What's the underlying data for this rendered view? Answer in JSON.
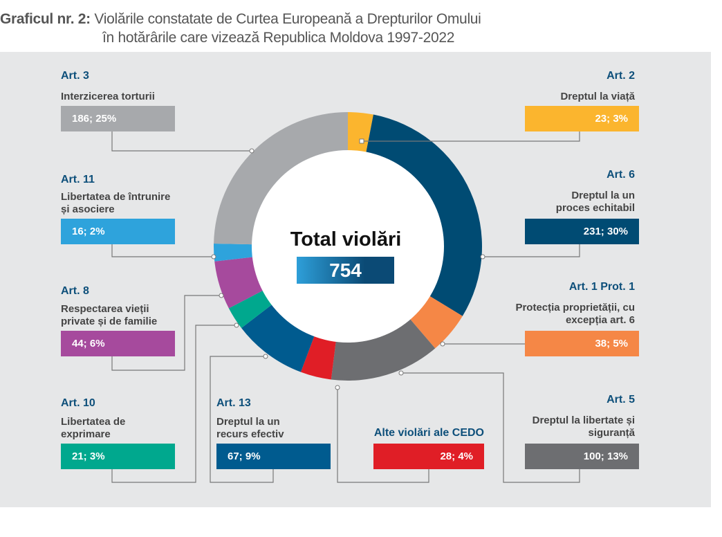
{
  "title": {
    "prefix": "Graficul nr. 2:",
    "line1": "Violările constatate de Curtea Europeană a Drepturilor Omului",
    "line2": "în hotărârile care vizează Republica Moldova 1997-2022"
  },
  "chart_data": {
    "type": "pie",
    "center_label": "Total violări",
    "total": "754",
    "slices": [
      {
        "article": "Art. 2",
        "label": "Dreptul la viață",
        "value": 23,
        "percent": 3,
        "text": "23; 3%",
        "color": "#fbb52e"
      },
      {
        "article": "Art. 6",
        "label": "Dreptul la un proces echitabil",
        "value": 231,
        "percent": 30,
        "text": "231; 30%",
        "color": "#004b73"
      },
      {
        "article": "Art. 1 Prot. 1",
        "label": "Protecția proprietății, cu excepția art. 6",
        "value": 38,
        "percent": 5,
        "text": "38; 5%",
        "color": "#f58746"
      },
      {
        "article": "Art. 5",
        "label": "Dreptul la libertate și siguranță",
        "value": 100,
        "percent": 13,
        "text": "100; 13%",
        "color": "#6d6e71"
      },
      {
        "article": "",
        "label": "Alte violări ale CEDO",
        "value": 28,
        "percent": 4,
        "text": "28; 4%",
        "color": "#e01e26"
      },
      {
        "article": "Art. 13",
        "label": "Dreptul la un recurs efectiv",
        "value": 67,
        "percent": 9,
        "text": "67; 9%",
        "color": "#005b8f"
      },
      {
        "article": "Art. 10",
        "label": "Libertatea de exprimare",
        "value": 21,
        "percent": 3,
        "text": "21; 3%",
        "color": "#00a88e"
      },
      {
        "article": "Art. 8",
        "label": "Respectarea vieții private și de familie",
        "value": 44,
        "percent": 6,
        "text": "44; 6%",
        "color": "#a64a9d"
      },
      {
        "article": "Art. 11",
        "label": "Libertatea de întrunire și asociere",
        "value": 16,
        "percent": 2,
        "text": "16; 2%",
        "color": "#2ea3dc"
      },
      {
        "article": "Art. 3",
        "label": "Interzicerea torturii",
        "value": 186,
        "percent": 25,
        "text": "186; 25%",
        "color": "#a7a9ac"
      }
    ]
  }
}
